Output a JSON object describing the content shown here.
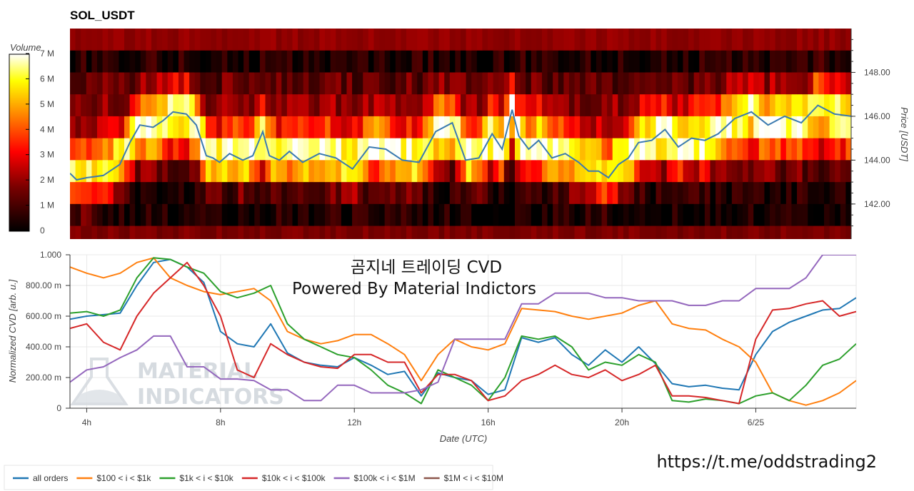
{
  "chart_data": [
    {
      "type": "heatmap",
      "title": "SOL_USDT",
      "colorbar": {
        "label": "Volume",
        "ticks": [
          "0",
          "1 M",
          "2 M",
          "3 M",
          "4 M",
          "5 M",
          "6 M",
          "7 M"
        ],
        "range": [
          0,
          7000000
        ],
        "colors": [
          "#000000",
          "#7a0000",
          "#ff0000",
          "#ff8000",
          "#ffff00",
          "#ffffff"
        ]
      },
      "y2label": "Price [USDT]",
      "y2ticks": [
        "142.00",
        "144.00",
        "146.00",
        "148.00"
      ],
      "ylim": [
        140.4,
        150.0
      ],
      "price_levels": [
        140.5,
        141.5,
        142.5,
        143.5,
        144.5,
        145.5,
        146.5,
        147.5,
        148.5,
        149.5
      ],
      "volume_profile_rows": [
        {
          "price": 149.5,
          "base_volume": 1900000
        },
        {
          "price": 148.5,
          "base_volume": 800000
        },
        {
          "price": 147.5,
          "base_volume": 2500000
        },
        {
          "price": 146.5,
          "base_volume": 3300000
        },
        {
          "price": 145.5,
          "base_volume": 3600000
        },
        {
          "price": 144.5,
          "base_volume": 4200000
        },
        {
          "price": 143.5,
          "base_volume": 2400000
        },
        {
          "price": 142.5,
          "base_volume": 800000
        },
        {
          "price": 141.5,
          "base_volume": 500000
        },
        {
          "price": 140.5,
          "base_volume": 1600000
        }
      ],
      "price_line": {
        "color": "#3a7ab0",
        "x_hours": [
          3.5,
          3.7,
          4.0,
          4.5,
          5.0,
          5.3,
          5.6,
          6.0,
          6.3,
          6.6,
          7.0,
          7.3,
          7.6,
          7.8,
          8.0,
          8.3,
          8.7,
          9.0,
          9.3,
          9.5,
          9.8,
          10.1,
          10.5,
          11.0,
          11.5,
          12.0,
          12.5,
          13.0,
          13.5,
          14.0,
          14.5,
          15.0,
          15.4,
          15.8,
          16.2,
          16.5,
          16.8,
          17.0,
          17.3,
          17.6,
          18.0,
          18.4,
          18.8,
          19.1,
          19.4,
          19.7,
          20.0,
          20.3,
          20.6,
          21.0,
          21.4,
          21.8,
          22.2,
          22.6,
          23.0,
          23.5,
          24.0,
          24.5,
          25.0,
          25.5,
          26.0,
          26.5,
          27.0
        ],
        "values": [
          143.4,
          143.1,
          143.2,
          143.3,
          143.8,
          144.8,
          145.6,
          145.5,
          145.8,
          146.2,
          146.1,
          145.6,
          144.2,
          144.1,
          143.9,
          144.3,
          144.0,
          144.2,
          145.3,
          144.2,
          144.0,
          144.4,
          143.9,
          144.3,
          144.1,
          143.6,
          144.6,
          144.5,
          144.0,
          143.9,
          145.3,
          145.7,
          144.0,
          144.1,
          145.2,
          144.5,
          146.3,
          145.1,
          144.5,
          144.9,
          144.1,
          144.3,
          143.9,
          143.5,
          143.5,
          143.2,
          143.8,
          144.1,
          144.8,
          144.9,
          145.4,
          144.6,
          145.0,
          144.9,
          145.2,
          145.9,
          146.2,
          145.6,
          146.0,
          145.7,
          146.5,
          146.1,
          146.0
        ]
      }
    },
    {
      "type": "line",
      "overlay_text": [
        "곰지네 트레이딩 CVD",
        "Powered By Material Indictors"
      ],
      "watermark": [
        "MATERIAL",
        "INDICATORS"
      ],
      "xlabel": "Date (UTC)",
      "ylabel": "Normalized CVD [arb. u.]",
      "xlim_hours": [
        3.5,
        27.0
      ],
      "xticks": [
        {
          "hour": 4,
          "label": "4h"
        },
        {
          "hour": 8,
          "label": "8h"
        },
        {
          "hour": 12,
          "label": "12h"
        },
        {
          "hour": 16,
          "label": "16h"
        },
        {
          "hour": 20,
          "label": "20h"
        },
        {
          "hour": 24,
          "label": "6/25"
        }
      ],
      "ylim": [
        0,
        1.0
      ],
      "yticks": [
        {
          "value": 0,
          "label": "0"
        },
        {
          "value": 0.2,
          "label": "200.00 m"
        },
        {
          "value": 0.4,
          "label": "400.00 m"
        },
        {
          "value": 0.6,
          "label": "600.00 m"
        },
        {
          "value": 0.8,
          "label": "800.00 m"
        },
        {
          "value": 1.0,
          "label": "1.000"
        }
      ],
      "x_hours": [
        3.5,
        4.0,
        4.5,
        5.0,
        5.5,
        6.0,
        6.5,
        7.0,
        7.5,
        8.0,
        8.5,
        9.0,
        9.5,
        10.0,
        10.5,
        11.0,
        11.5,
        12.0,
        12.5,
        13.0,
        13.5,
        14.0,
        14.5,
        15.0,
        15.5,
        16.0,
        16.5,
        17.0,
        17.5,
        18.0,
        18.5,
        19.0,
        19.5,
        20.0,
        20.5,
        21.0,
        21.5,
        22.0,
        22.5,
        23.0,
        23.5,
        24.0,
        24.5,
        25.0,
        25.5,
        26.0,
        26.5,
        27.0
      ],
      "series": [
        {
          "name": "all orders",
          "color": "#1f77b4",
          "values": [
            0.58,
            0.6,
            0.61,
            0.62,
            0.8,
            0.95,
            0.97,
            0.92,
            0.82,
            0.5,
            0.42,
            0.4,
            0.55,
            0.36,
            0.3,
            0.28,
            0.27,
            0.33,
            0.28,
            0.22,
            0.24,
            0.08,
            0.23,
            0.2,
            0.18,
            0.09,
            0.12,
            0.46,
            0.43,
            0.46,
            0.35,
            0.28,
            0.38,
            0.3,
            0.4,
            0.29,
            0.16,
            0.14,
            0.15,
            0.13,
            0.12,
            0.35,
            0.5,
            0.56,
            0.6,
            0.64,
            0.65,
            0.72
          ]
        },
        {
          "name": "$100 < i < $1k",
          "color": "#ff7f0e",
          "values": [
            0.92,
            0.88,
            0.85,
            0.88,
            0.95,
            0.98,
            0.85,
            0.8,
            0.76,
            0.74,
            0.76,
            0.78,
            0.7,
            0.5,
            0.45,
            0.42,
            0.44,
            0.48,
            0.48,
            0.42,
            0.35,
            0.18,
            0.35,
            0.45,
            0.4,
            0.38,
            0.42,
            0.65,
            0.64,
            0.63,
            0.6,
            0.58,
            0.6,
            0.62,
            0.67,
            0.7,
            0.55,
            0.52,
            0.51,
            0.45,
            0.4,
            0.3,
            0.1,
            0.05,
            0.02,
            0.05,
            0.1,
            0.18
          ]
        },
        {
          "name": "$1k < i < $10k",
          "color": "#2ca02c",
          "values": [
            0.62,
            0.63,
            0.6,
            0.64,
            0.85,
            0.98,
            0.97,
            0.92,
            0.88,
            0.76,
            0.72,
            0.75,
            0.8,
            0.55,
            0.45,
            0.4,
            0.35,
            0.33,
            0.25,
            0.15,
            0.1,
            0.03,
            0.25,
            0.2,
            0.15,
            0.05,
            0.2,
            0.47,
            0.45,
            0.47,
            0.4,
            0.25,
            0.3,
            0.28,
            0.35,
            0.3,
            0.05,
            0.04,
            0.06,
            0.05,
            0.03,
            0.08,
            0.1,
            0.05,
            0.15,
            0.28,
            0.32,
            0.42
          ]
        },
        {
          "name": "$10k < i < $100k",
          "color": "#d62728",
          "values": [
            0.52,
            0.55,
            0.43,
            0.38,
            0.6,
            0.75,
            0.85,
            0.95,
            0.8,
            0.6,
            0.25,
            0.2,
            0.42,
            0.35,
            0.3,
            0.27,
            0.26,
            0.35,
            0.35,
            0.3,
            0.3,
            0.1,
            0.22,
            0.22,
            0.18,
            0.05,
            0.08,
            0.18,
            0.22,
            0.28,
            0.22,
            0.2,
            0.25,
            0.18,
            0.22,
            0.28,
            0.08,
            0.08,
            0.07,
            0.05,
            0.03,
            0.45,
            0.64,
            0.65,
            0.68,
            0.7,
            0.6,
            0.63
          ]
        },
        {
          "name": "$100k < i < $1M",
          "color": "#9467bd",
          "values": [
            0.17,
            0.25,
            0.27,
            0.33,
            0.38,
            0.47,
            0.47,
            0.27,
            0.27,
            0.19,
            0.19,
            0.18,
            0.12,
            0.12,
            0.05,
            0.05,
            0.15,
            0.15,
            0.1,
            0.1,
            0.1,
            0.12,
            0.17,
            0.45,
            0.45,
            0.45,
            0.45,
            0.68,
            0.68,
            0.75,
            0.75,
            0.75,
            0.72,
            0.72,
            0.7,
            0.7,
            0.7,
            0.67,
            0.67,
            0.7,
            0.7,
            0.78,
            0.78,
            0.78,
            0.85,
            1.0,
            1.0,
            1.0
          ]
        },
        {
          "name": "$1M < i < $10M",
          "color": "#8c564b",
          "values": []
        }
      ]
    }
  ],
  "footer": {
    "url": "https://t.me/oddstrading2"
  }
}
